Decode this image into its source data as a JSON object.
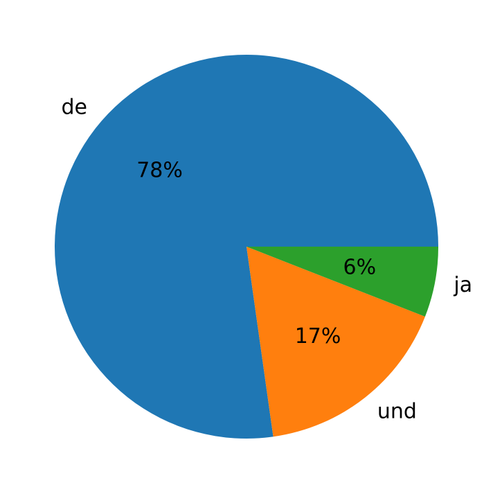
{
  "chart_data": {
    "type": "pie",
    "categories": [
      "de",
      "und",
      "ja"
    ],
    "values": [
      78,
      17,
      6
    ],
    "value_labels": [
      "78%",
      "17%",
      "6%"
    ],
    "colors": [
      "#1f77b4",
      "#ff7f0e",
      "#2ca02c"
    ]
  }
}
